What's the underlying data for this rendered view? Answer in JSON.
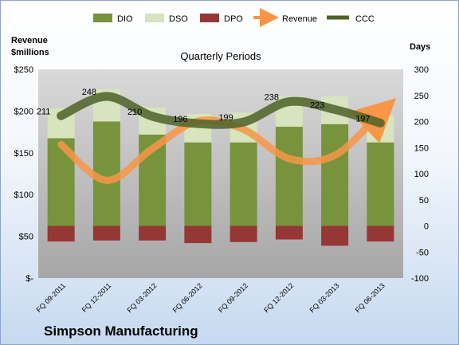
{
  "company": "Simpson Manufacturing",
  "chart_data": {
    "type": "bar",
    "title": "Quarterly Periods",
    "categories": [
      "FQ 09-2011",
      "FQ 12-2011",
      "FQ 03-2012",
      "FQ 06-2012",
      "FQ 09-2012",
      "FQ 12-2012",
      "FQ 03-2013",
      "FQ 06-2013"
    ],
    "y_left": {
      "label_line1": "Revenue",
      "label_line2": "$millions",
      "ylim": [
        0,
        250
      ],
      "ticks": [
        0,
        50,
        100,
        150,
        200,
        250
      ],
      "tick_labels": [
        "$-",
        "$50",
        "$100",
        "$150",
        "$200",
        "$250"
      ]
    },
    "y_right": {
      "label": "Days",
      "ylim": [
        -100,
        300
      ],
      "ticks": [
        -100,
        -50,
        0,
        50,
        100,
        150,
        200,
        250,
        300
      ],
      "tick_labels": [
        "-100",
        "-50",
        "0",
        "50",
        "100",
        "150",
        "200",
        "250",
        "300"
      ]
    },
    "legend_position": "top",
    "grid": false,
    "series": [
      {
        "name": "DIO",
        "kind": "stacked-bar",
        "axis": "right",
        "color": "#77933c",
        "values": [
          168,
          200,
          175,
          160,
          160,
          190,
          195,
          160
        ]
      },
      {
        "name": "DSO",
        "kind": "stacked-bar",
        "axis": "right",
        "color": "#d7e4bd",
        "values": [
          57,
          62,
          52,
          55,
          57,
          58,
          53,
          52
        ]
      },
      {
        "name": "DPO",
        "kind": "negative-bar",
        "axis": "right",
        "color": "#953735",
        "values": [
          -30,
          -28,
          -28,
          -33,
          -31,
          -26,
          -38,
          -30
        ]
      },
      {
        "name": "Revenue",
        "kind": "line",
        "axis": "left",
        "color": "#f79646",
        "values": [
          160,
          117,
          155,
          188,
          178,
          143,
          147,
          198
        ]
      },
      {
        "name": "CCC",
        "kind": "line",
        "axis": "right",
        "color": "#4f6228",
        "values": [
          211,
          248,
          210,
          196,
          199,
          238,
          223,
          197
        ],
        "data_labels": [
          "211",
          "248",
          "210",
          "196",
          "199",
          "238",
          "223",
          "197"
        ]
      }
    ]
  }
}
